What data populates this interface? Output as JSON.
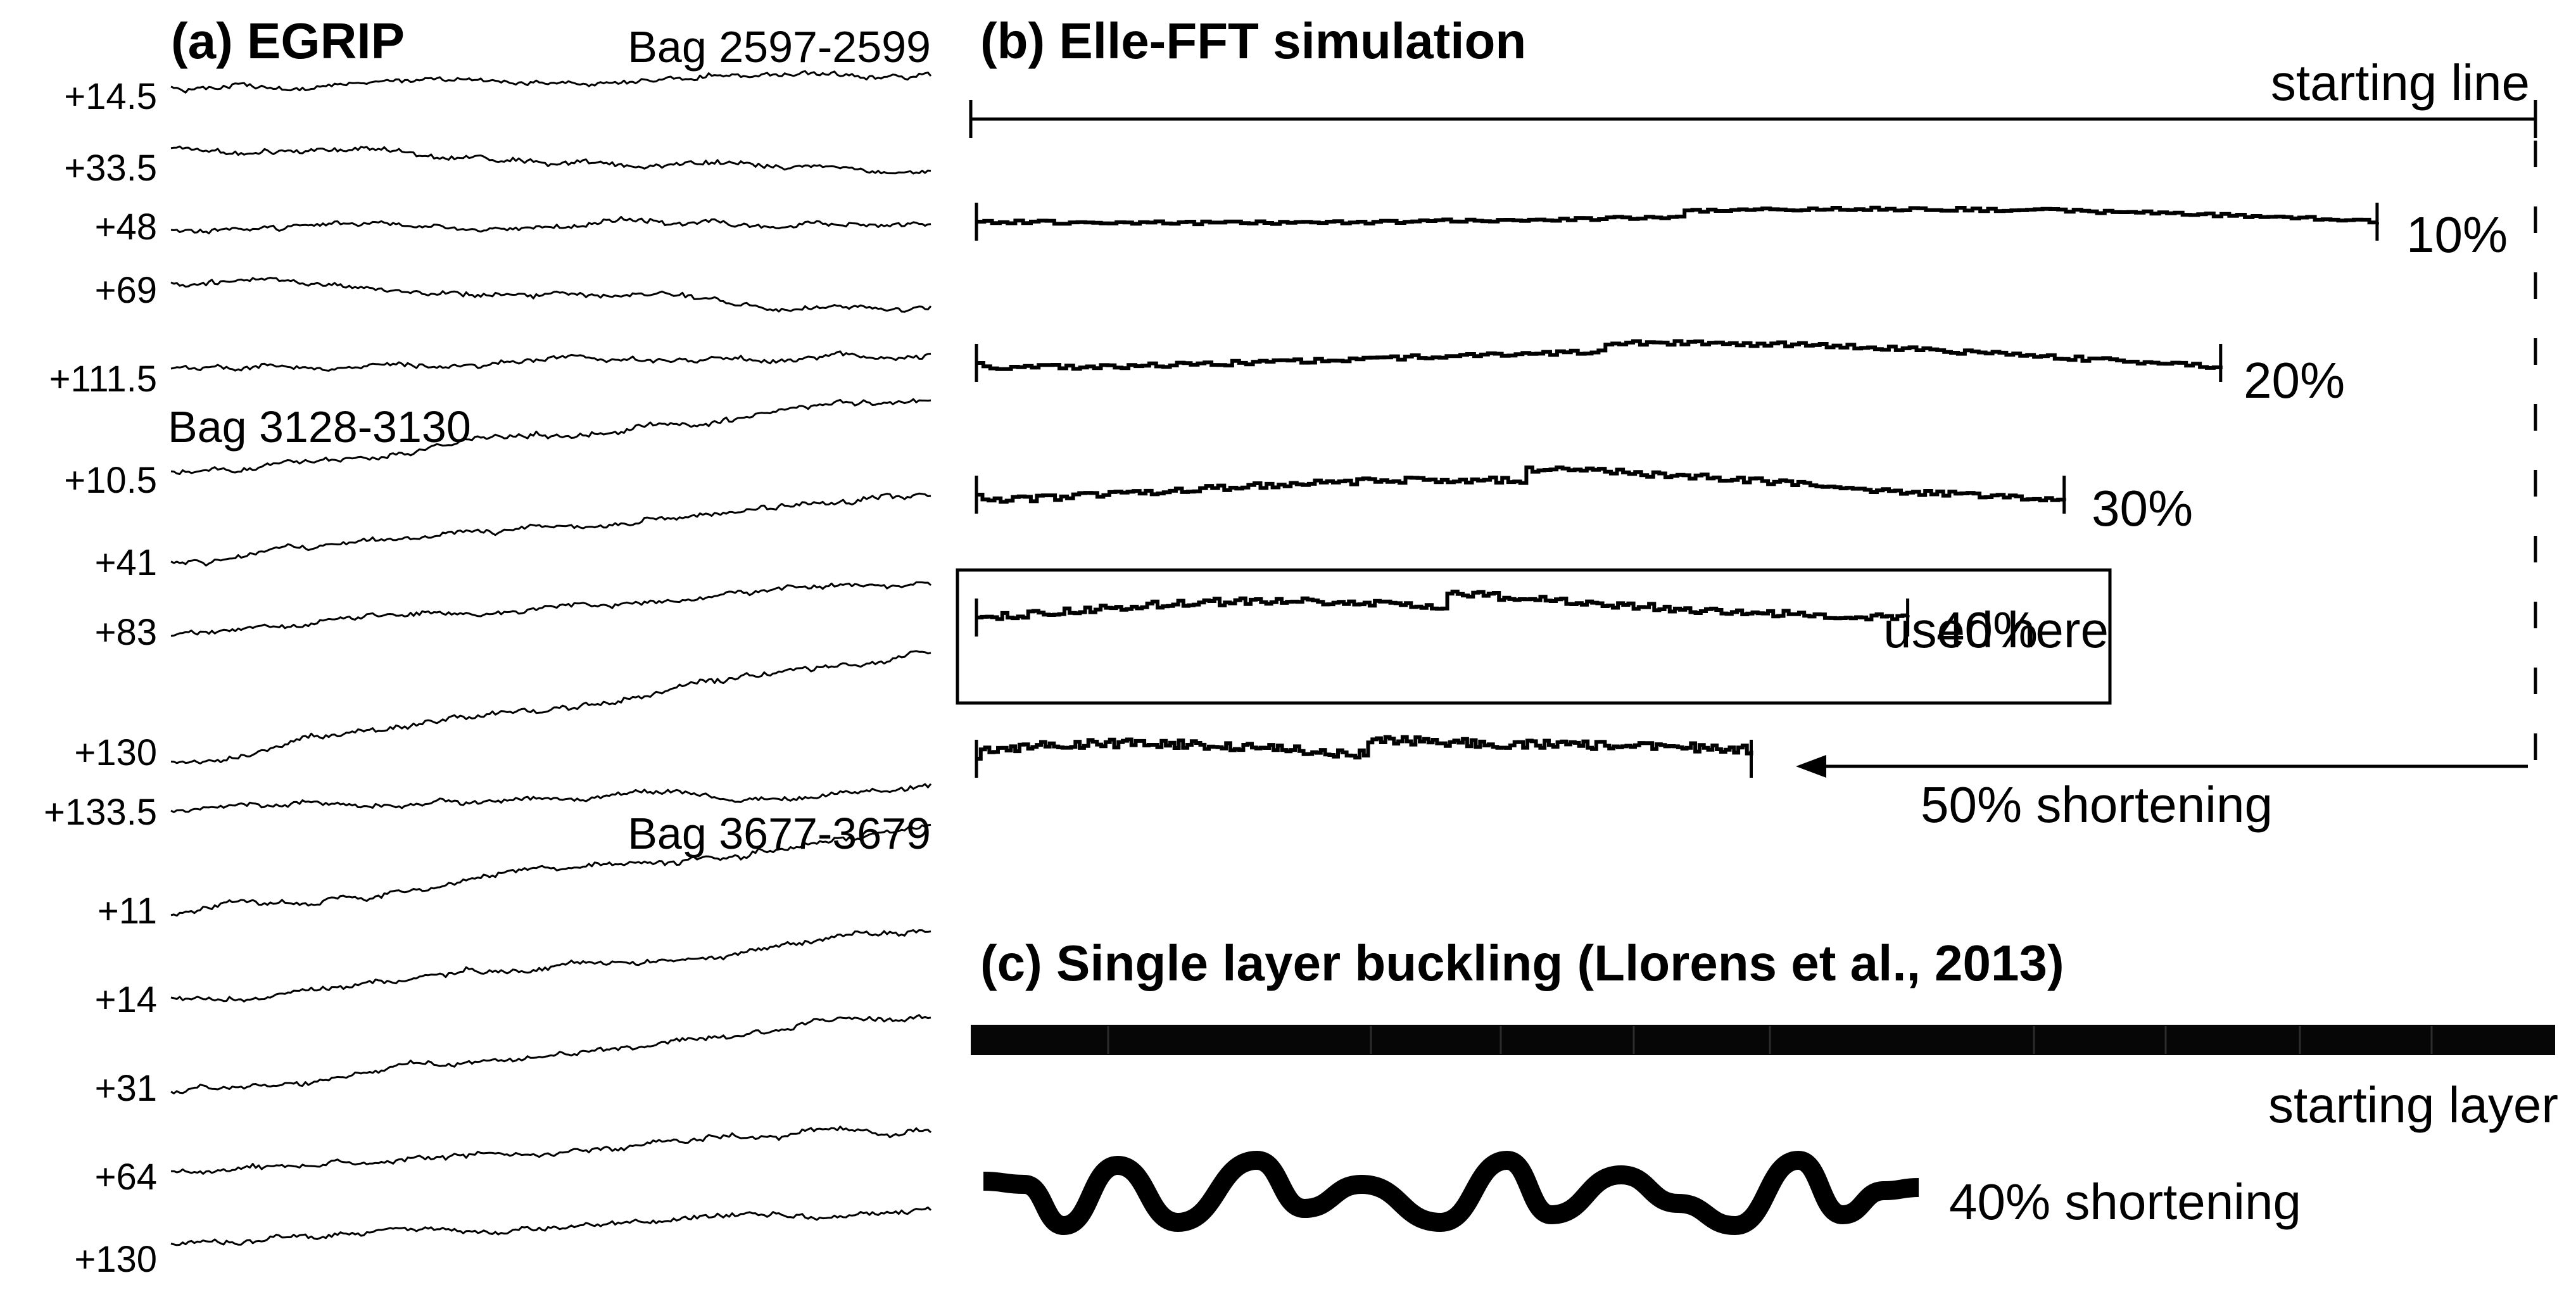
{
  "panel_a": {
    "title": "(a) EGRIP",
    "groups": [
      {
        "bag": "Bag 2597-2599",
        "depths": [
          "+14.5",
          "+33.5",
          "+48",
          "+69",
          "+111.5"
        ]
      },
      {
        "bag": "Bag 3128-3130",
        "depths": [
          "+10.5",
          "+41",
          "+83",
          "+130",
          "+133.5"
        ]
      },
      {
        "bag": "Bag 3677-3679",
        "depths": [
          "+11",
          "+14",
          "+31",
          "+64",
          "+130"
        ]
      }
    ]
  },
  "panel_b": {
    "title": "(b) Elle-FFT simulation",
    "starting_label": "starting line",
    "traces": [
      {
        "label": "10%",
        "shortening": 0.1
      },
      {
        "label": "20%",
        "shortening": 0.2
      },
      {
        "label": "30%",
        "shortening": 0.3
      },
      {
        "label": "40%",
        "shortening": 0.4
      },
      {
        "label": "50% shortening",
        "shortening": 0.5
      }
    ],
    "used_here": "used here"
  },
  "panel_c": {
    "title": "(c) Single layer buckling (Llorens et al., 2013)",
    "starting_label": "starting layer",
    "buckled_label": "40% shortening"
  }
}
